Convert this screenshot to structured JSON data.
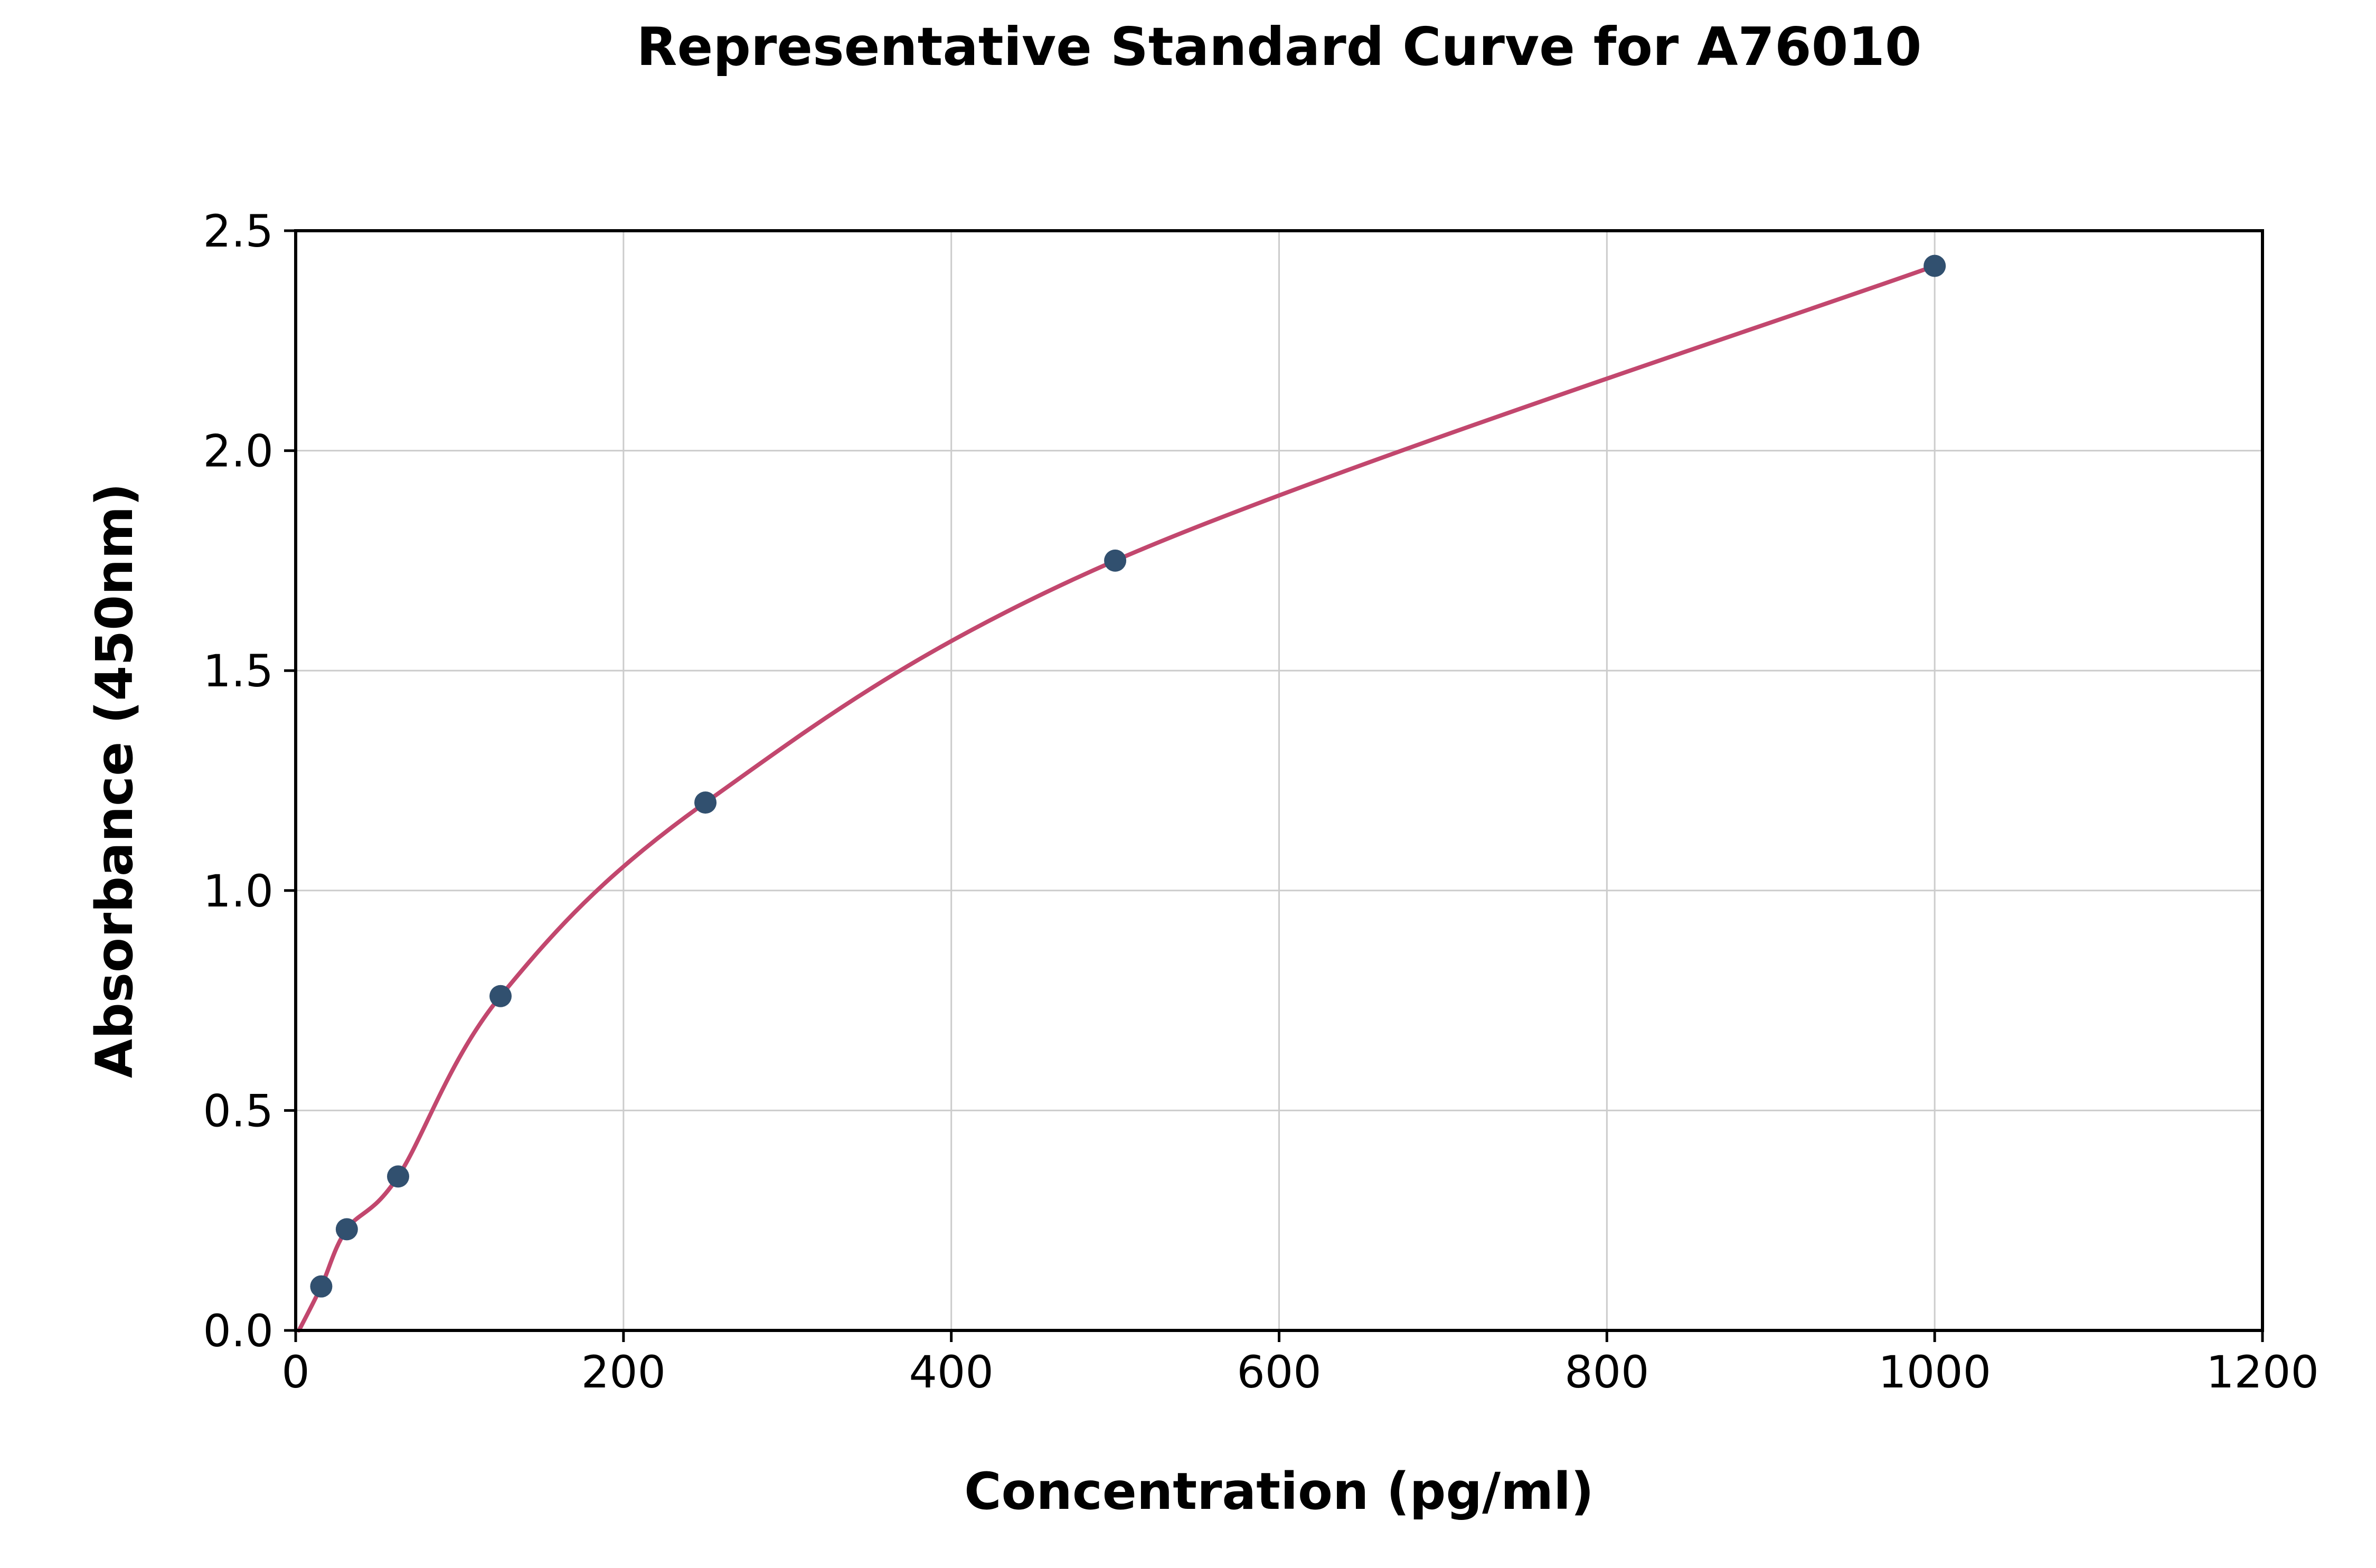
{
  "chart_data": {
    "type": "scatter",
    "title": "Representative Standard Curve for A76010",
    "xlabel": "Concentration (pg/ml)",
    "ylabel": "Absorbance (450nm)",
    "xlim": [
      0,
      1200
    ],
    "ylim": [
      0,
      2.5
    ],
    "x_ticks": [
      0,
      200,
      400,
      600,
      800,
      1000,
      1200
    ],
    "y_ticks": [
      "0.0",
      "0.5",
      "1.0",
      "1.5",
      "2.0",
      "2.5"
    ],
    "grid": true,
    "legend": "none",
    "series": [
      {
        "name": "standards",
        "x": [
          15.6,
          31.2,
          62.5,
          125,
          250,
          500,
          1000
        ],
        "y": [
          0.1,
          0.23,
          0.35,
          0.76,
          1.2,
          1.75,
          2.42
        ]
      }
    ],
    "trendline": {
      "type": "smooth-fit-through-points",
      "start_x": 2,
      "start_y": 0
    },
    "colors": {
      "point": "#31506f",
      "curve": "#c2476e",
      "grid": "#cccccc",
      "axis": "#000000",
      "background": "#ffffff"
    }
  }
}
